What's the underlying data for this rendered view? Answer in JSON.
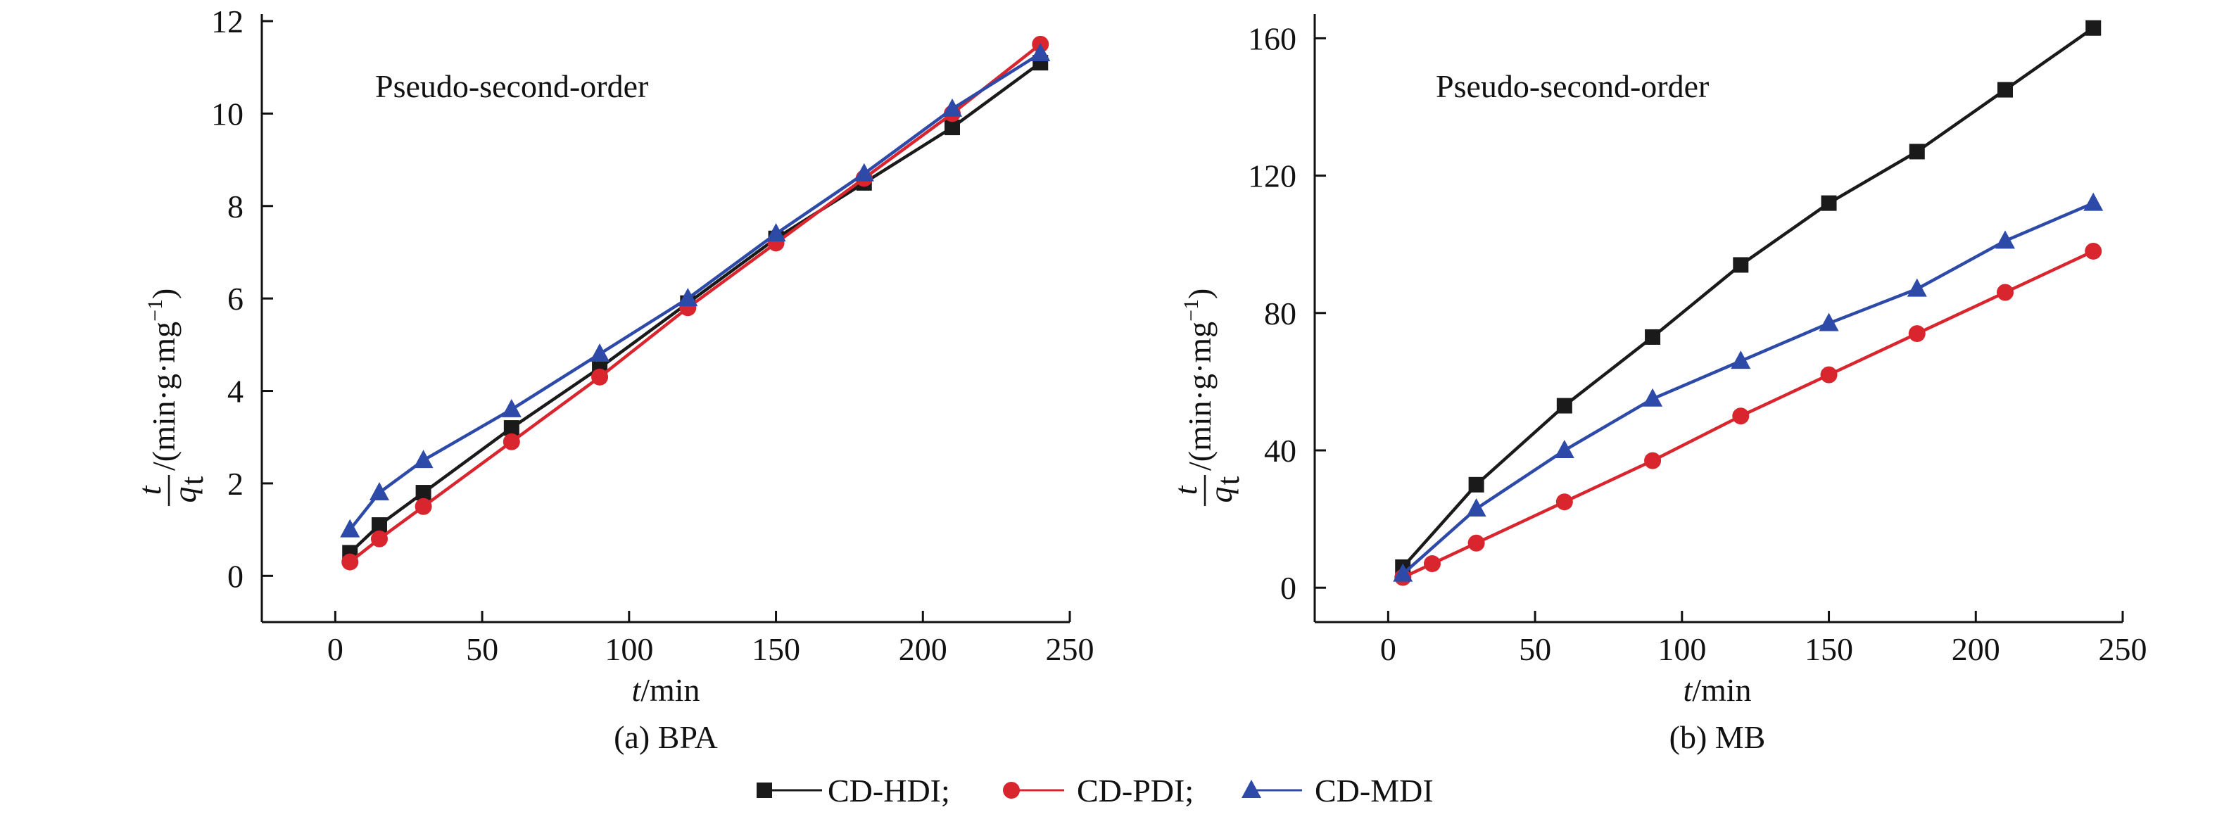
{
  "chart_data": [
    {
      "type": "line",
      "panel_label": "(a) BPA",
      "annotation": "Pseudo-second-order",
      "xlabel": {
        "var": "t",
        "rest": "/min"
      },
      "ylabel": {
        "num": "t",
        "den": "q",
        "den_sub": "t",
        "unit": "/(min·g·mg",
        "unit_sup": "−1",
        "unit_close": ")"
      },
      "xlim": [
        -25,
        250
      ],
      "ylim": [
        -1,
        12
      ],
      "xticks": [
        "0",
        "50",
        "100",
        "150",
        "200",
        "250"
      ],
      "yticks": [
        "0",
        "2",
        "4",
        "6",
        "8",
        "10",
        "12"
      ],
      "series": [
        {
          "name": "CD-HDI",
          "color": "#1a1a1a",
          "marker": "square",
          "x": [
            5,
            15,
            30,
            60,
            90,
            120,
            150,
            180,
            210,
            240
          ],
          "y": [
            0.5,
            1.1,
            1.8,
            3.2,
            4.5,
            5.9,
            7.3,
            8.5,
            9.7,
            11.1
          ]
        },
        {
          "name": "CD-PDI",
          "color": "#d9262e",
          "marker": "circle",
          "x": [
            5,
            15,
            30,
            60,
            90,
            120,
            150,
            180,
            210,
            240
          ],
          "y": [
            0.3,
            0.8,
            1.5,
            2.9,
            4.3,
            5.8,
            7.2,
            8.6,
            10.0,
            11.5
          ]
        },
        {
          "name": "CD-MDI",
          "color": "#2e4aa8",
          "marker": "triangle",
          "x": [
            5,
            15,
            30,
            60,
            90,
            120,
            150,
            180,
            210,
            240
          ],
          "y": [
            1.0,
            1.8,
            2.5,
            3.6,
            4.8,
            6.0,
            7.4,
            8.7,
            10.1,
            11.3
          ]
        }
      ]
    },
    {
      "type": "line",
      "panel_label": "(b) MB",
      "annotation": "Pseudo-second-order",
      "xlabel": {
        "var": "t",
        "rest": "/min"
      },
      "ylabel": {
        "num": "t",
        "den": "q",
        "den_sub": "t",
        "unit": "/(min·g·mg",
        "unit_sup": "−1",
        "unit_close": ")"
      },
      "xlim": [
        -25,
        250
      ],
      "ylim": [
        -10,
        165
      ],
      "xticks": [
        "0",
        "50",
        "100",
        "150",
        "200",
        "250"
      ],
      "yticks": [
        "0",
        "40",
        "80",
        "120",
        "160"
      ],
      "series": [
        {
          "name": "CD-HDI",
          "color": "#1a1a1a",
          "marker": "square",
          "x": [
            5,
            30,
            60,
            90,
            120,
            150,
            180,
            210,
            240
          ],
          "y": [
            6,
            30,
            53,
            73,
            94,
            112,
            127,
            145,
            163
          ]
        },
        {
          "name": "CD-PDI",
          "color": "#d9262e",
          "marker": "circle",
          "x": [
            5,
            15,
            30,
            60,
            90,
            120,
            150,
            180,
            210,
            240
          ],
          "y": [
            3,
            7,
            13,
            25,
            37,
            50,
            62,
            74,
            86,
            98
          ]
        },
        {
          "name": "CD-MDI",
          "color": "#2e4aa8",
          "marker": "triangle",
          "x": [
            5,
            30,
            60,
            90,
            120,
            150,
            180,
            210,
            240
          ],
          "y": [
            4,
            23,
            40,
            55,
            66,
            77,
            87,
            101,
            112
          ]
        }
      ]
    }
  ],
  "legend": [
    {
      "label": "CD-HDI;",
      "color": "#1a1a1a",
      "marker": "square"
    },
    {
      "label": "CD-PDI;",
      "color": "#d9262e",
      "marker": "circle"
    },
    {
      "label": "CD-MDI",
      "color": "#2e4aa8",
      "marker": "triangle"
    }
  ]
}
